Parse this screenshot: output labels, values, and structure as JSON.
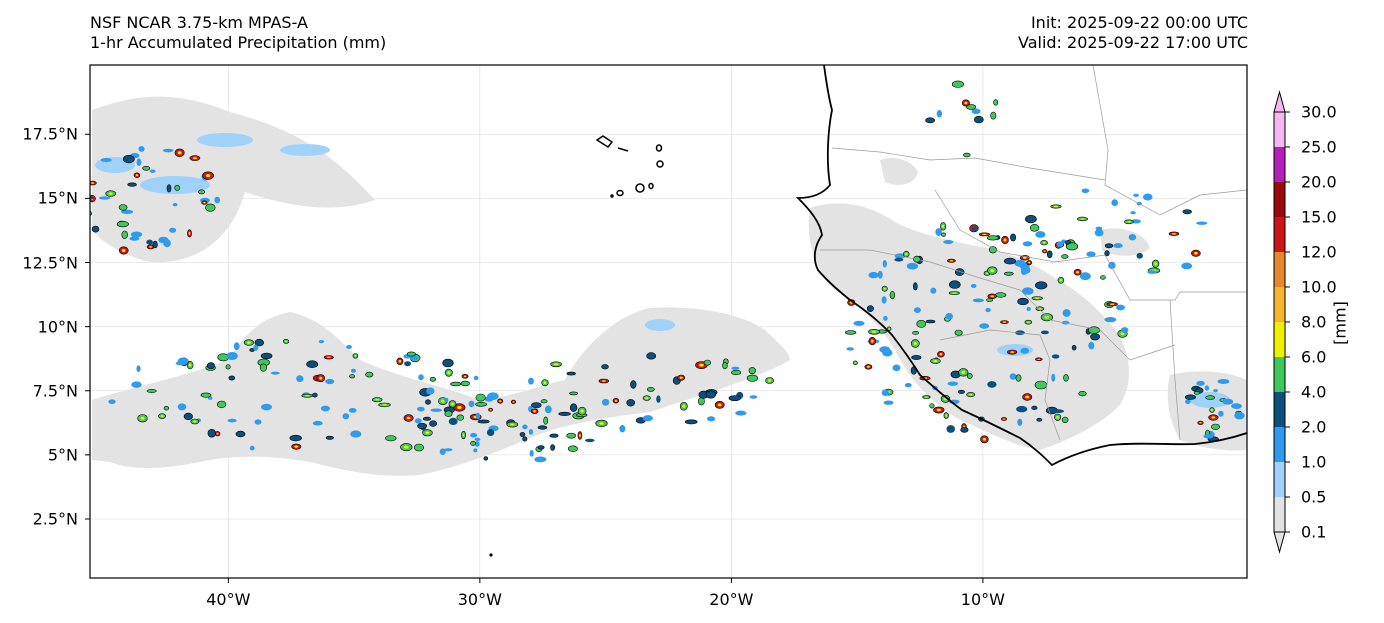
{
  "header": {
    "title_line1": "NSF NCAR 3.75-km MPAS-A",
    "title_line2": "1-hr Accumulated Precipitation (mm)",
    "init": "Init: 2025-09-22 00:00 UTC",
    "valid": "Valid: 2025-09-22 17:00 UTC"
  },
  "map": {
    "lon_range": [
      -45.5,
      0.5
    ],
    "lat_range": [
      0.2,
      20.2
    ],
    "lat_ticks": [
      {
        "value": 17.5,
        "label": "17.5°N"
      },
      {
        "value": 15,
        "label": "15°N"
      },
      {
        "value": 12.5,
        "label": "12.5°N"
      },
      {
        "value": 10,
        "label": "10°N"
      },
      {
        "value": 7.5,
        "label": "7.5°N"
      },
      {
        "value": 5,
        "label": "5°N"
      },
      {
        "value": 2.5,
        "label": "2.5°N"
      }
    ],
    "lon_ticks": [
      {
        "value": -40,
        "label": "40°W"
      },
      {
        "value": -30,
        "label": "30°W"
      },
      {
        "value": -20,
        "label": "20°W"
      },
      {
        "value": -10,
        "label": "10°W"
      }
    ],
    "gridlines": true
  },
  "colorbar": {
    "unit_label": "[mm]",
    "levels": [
      "0.1",
      "0.5",
      "1.0",
      "2.0",
      "4.0",
      "6.0",
      "8.0",
      "10.0",
      "12.0",
      "15.0",
      "20.0",
      "25.0",
      "30.0"
    ],
    "colors": [
      "#e3e3e3",
      "#9fd2fa",
      "#2e9af0",
      "#0a4f7e",
      "#3fc85b",
      "#f0f000",
      "#f5b62e",
      "#e6892a",
      "#cc1616",
      "#9a0a0a",
      "#b31fb8",
      "#f4b7f2"
    ],
    "extend": "both"
  }
}
